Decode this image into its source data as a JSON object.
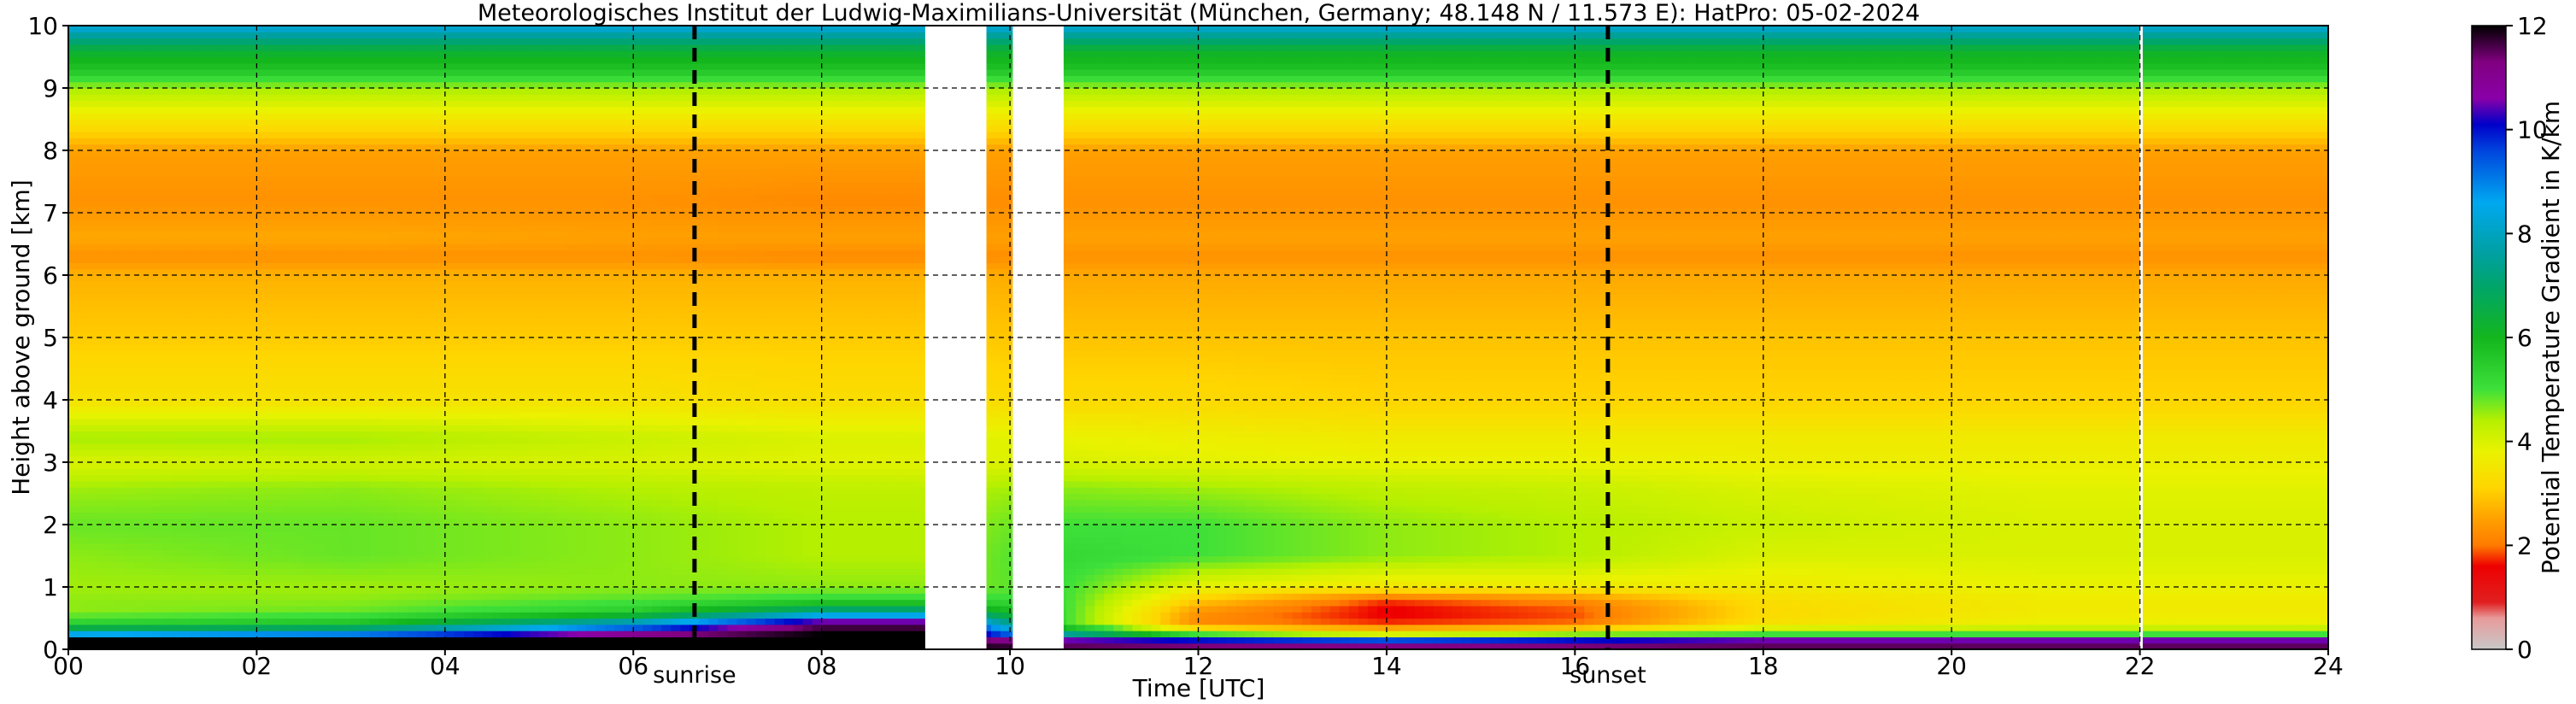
{
  "chart_data": {
    "type": "heatmap",
    "title": "Meteorologisches Institut der Ludwig-Maximilians-Universität (München, Germany; 48.148 N / 11.573 E):    HatPro: 05-02-2024",
    "xlabel": "Time [UTC]",
    "ylabel": "Height above ground [km]",
    "xlim": [
      0,
      24
    ],
    "ylim": [
      0,
      10
    ],
    "x_ticks": [
      0,
      2,
      4,
      6,
      8,
      10,
      12,
      14,
      16,
      18,
      20,
      22,
      24
    ],
    "x_tick_labels": [
      "00",
      "02",
      "04",
      "06",
      "08",
      "10",
      "12",
      "14",
      "16",
      "18",
      "20",
      "22",
      "24"
    ],
    "y_ticks": [
      0,
      1,
      2,
      3,
      4,
      5,
      6,
      7,
      8,
      9,
      10
    ],
    "y_tick_labels": [
      "0",
      "1",
      "2",
      "3",
      "4",
      "5",
      "6",
      "7",
      "8",
      "9",
      "10"
    ],
    "grid": true,
    "colorbar": {
      "label": "Potential Temperature Gradient in K/km",
      "range": [
        0,
        12
      ],
      "ticks": [
        0,
        2,
        4,
        6,
        8,
        10,
        12
      ],
      "tick_labels": [
        "0",
        "2",
        "4",
        "6",
        "8",
        "10",
        "12"
      ],
      "colors": [
        {
          "v": 0.0,
          "c": "#c8c8c8"
        },
        {
          "v": 0.6,
          "c": "#e89a9a"
        },
        {
          "v": 0.9,
          "c": "#e02020"
        },
        {
          "v": 1.6,
          "c": "#ee0000"
        },
        {
          "v": 2.0,
          "c": "#ff7b00"
        },
        {
          "v": 2.5,
          "c": "#ffa000"
        },
        {
          "v": 3.1,
          "c": "#ffd500"
        },
        {
          "v": 3.8,
          "c": "#eaf200"
        },
        {
          "v": 4.4,
          "c": "#b6f000"
        },
        {
          "v": 5.0,
          "c": "#3ee03a"
        },
        {
          "v": 6.0,
          "c": "#13b61d"
        },
        {
          "v": 7.0,
          "c": "#00a56b"
        },
        {
          "v": 7.6,
          "c": "#00a0a0"
        },
        {
          "v": 8.6,
          "c": "#00a8f0"
        },
        {
          "v": 9.6,
          "c": "#0044dd"
        },
        {
          "v": 10.1,
          "c": "#0000c8"
        },
        {
          "v": 10.6,
          "c": "#8a00a8"
        },
        {
          "v": 11.3,
          "c": "#800080"
        },
        {
          "v": 12.0,
          "c": "#000000"
        }
      ]
    },
    "profile_levels_km": [
      0.0,
      0.15,
      0.25,
      0.4,
      0.6,
      0.8,
      1.0,
      1.5,
      2.0,
      2.6,
      3.0,
      3.4,
      4.0,
      5.0,
      6.0,
      6.3,
      6.6,
      7.2,
      8.0,
      8.5,
      9.0,
      9.3,
      9.6,
      10.0
    ],
    "profiles": [
      {
        "time": 0.0,
        "gradient": [
          12,
          12,
          8.5,
          5.5,
          4.6,
          4.6,
          4.5,
          4.6,
          4.8,
          4.5,
          4.0,
          4.5,
          3.4,
          3.0,
          2.7,
          2.3,
          2.6,
          2.3,
          2.5,
          3.5,
          4.5,
          5.7,
          6.3,
          8.4
        ]
      },
      {
        "time": 3.0,
        "gradient": [
          12,
          12,
          9.0,
          5.8,
          4.8,
          4.6,
          4.5,
          4.8,
          4.8,
          4.6,
          4.1,
          4.5,
          3.4,
          3.0,
          2.7,
          2.3,
          2.6,
          2.3,
          2.5,
          3.5,
          4.5,
          5.7,
          6.3,
          8.4
        ]
      },
      {
        "time": 6.0,
        "gradient": [
          12,
          12,
          11.0,
          8.5,
          5.5,
          4.9,
          4.6,
          4.6,
          4.6,
          4.4,
          4.0,
          4.2,
          3.4,
          3.0,
          2.7,
          2.3,
          2.5,
          2.3,
          2.5,
          3.5,
          4.5,
          5.7,
          6.3,
          8.4
        ]
      },
      {
        "time": 8.0,
        "gradient": [
          12,
          12,
          12,
          11.5,
          7.5,
          5.2,
          4.6,
          4.4,
          4.4,
          4.3,
          3.9,
          4.0,
          3.3,
          3.0,
          2.7,
          2.2,
          2.5,
          2.2,
          2.5,
          3.5,
          4.5,
          5.7,
          6.3,
          8.4
        ]
      },
      {
        "time": 9.1,
        "gradient": [
          12,
          12,
          12,
          11.5,
          7.5,
          5.2,
          4.6,
          4.4,
          4.4,
          4.3,
          3.9,
          4.0,
          3.3,
          3.0,
          2.7,
          2.2,
          2.5,
          2.2,
          2.5,
          3.5,
          4.5,
          5.7,
          6.3,
          8.4
        ]
      },
      {
        "time": 10.6,
        "gradient": [
          12,
          10.5,
          7.5,
          5.0,
          5.0,
          5.0,
          5.0,
          5.2,
          5.0,
          4.6,
          4.0,
          3.8,
          3.2,
          2.9,
          2.6,
          2.3,
          2.5,
          2.3,
          2.5,
          3.5,
          4.5,
          5.7,
          6.2,
          8.3
        ]
      },
      {
        "time": 12.0,
        "gradient": [
          12,
          10.0,
          5.0,
          2.2,
          2.3,
          3.0,
          3.8,
          5.0,
          5.0,
          4.5,
          3.9,
          3.7,
          3.2,
          2.9,
          2.6,
          2.3,
          2.5,
          2.3,
          2.5,
          3.5,
          4.5,
          5.7,
          6.2,
          8.3
        ]
      },
      {
        "time": 14.0,
        "gradient": [
          12,
          9.5,
          4.0,
          1.8,
          1.5,
          1.8,
          3.5,
          4.6,
          4.6,
          4.3,
          3.8,
          3.6,
          3.1,
          2.9,
          2.6,
          2.3,
          2.5,
          2.3,
          2.5,
          3.5,
          4.5,
          5.7,
          6.2,
          8.3
        ]
      },
      {
        "time": 16.0,
        "gradient": [
          12,
          10.0,
          4.6,
          2.0,
          1.8,
          2.2,
          3.6,
          4.4,
          4.4,
          4.2,
          3.8,
          3.6,
          3.1,
          2.9,
          2.6,
          2.3,
          2.5,
          2.3,
          2.5,
          3.5,
          4.5,
          5.7,
          6.2,
          8.3
        ]
      },
      {
        "time": 18.0,
        "gradient": [
          12,
          10.5,
          5.0,
          3.4,
          3.2,
          3.3,
          3.6,
          4.0,
          4.2,
          4.0,
          3.7,
          3.6,
          3.1,
          2.9,
          2.6,
          2.3,
          2.5,
          2.3,
          2.5,
          3.5,
          4.5,
          5.7,
          6.2,
          8.3
        ]
      },
      {
        "time": 21.0,
        "gradient": [
          12,
          10.5,
          5.0,
          3.8,
          3.6,
          3.6,
          3.8,
          4.0,
          4.0,
          3.9,
          3.7,
          3.6,
          3.1,
          2.9,
          2.6,
          2.3,
          2.5,
          2.3,
          2.5,
          3.5,
          4.5,
          5.7,
          6.2,
          8.3
        ]
      },
      {
        "time": 24.0,
        "gradient": [
          12,
          10.5,
          5.0,
          3.8,
          3.6,
          3.6,
          3.8,
          4.0,
          4.0,
          3.9,
          3.7,
          3.6,
          3.1,
          2.9,
          2.6,
          2.3,
          2.5,
          2.3,
          2.5,
          3.5,
          4.5,
          5.7,
          6.2,
          8.3
        ]
      }
    ],
    "missing_data_periods": [
      [
        9.1,
        9.75
      ],
      [
        10.03,
        10.57
      ],
      [
        22.0,
        22.03
      ]
    ],
    "annotations": [
      {
        "label": "sunrise",
        "time": 6.65
      },
      {
        "label": "sunset",
        "time": 16.35
      }
    ]
  }
}
